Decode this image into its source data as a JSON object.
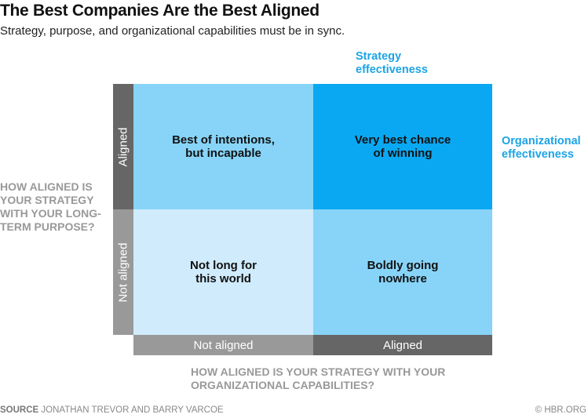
{
  "title": "The Best Companies Are the Best Aligned",
  "subtitle": "Strategy, purpose, and organizational capabilities must be in sync.",
  "top_label": "Strategy effectiveness",
  "right_label": "Organizational effectiveness",
  "y_question": "HOW ALIGNED IS YOUR STRATEGY WITH YOUR LONG-TERM PURPOSE?",
  "x_question": "HOW ALIGNED IS YOUR STRATEGY WITH YOUR ORGANIZATIONAL CAPABILITIES?",
  "y_axis": {
    "top": "Aligned",
    "bottom": "Not aligned"
  },
  "x_axis": {
    "left": "Not aligned",
    "right": "Aligned"
  },
  "quadrants": {
    "top_left": "Best of intentions, but incapable",
    "top_right": "Very best chance of winning",
    "bottom_left": "Not long for this world",
    "bottom_right": "Boldly going nowhere"
  },
  "colors": {
    "light": "#87d4f8",
    "bright": "#0aa8f2",
    "pale": "#d0ecfc",
    "dark_bar": "#666666",
    "grey_bar": "#999999",
    "accent": "#1ba4e6"
  },
  "footer": {
    "source_label": "SOURCE",
    "source": "JONATHAN TREVOR AND BARRY VARCOE",
    "copyright": "© HBR.ORG"
  }
}
